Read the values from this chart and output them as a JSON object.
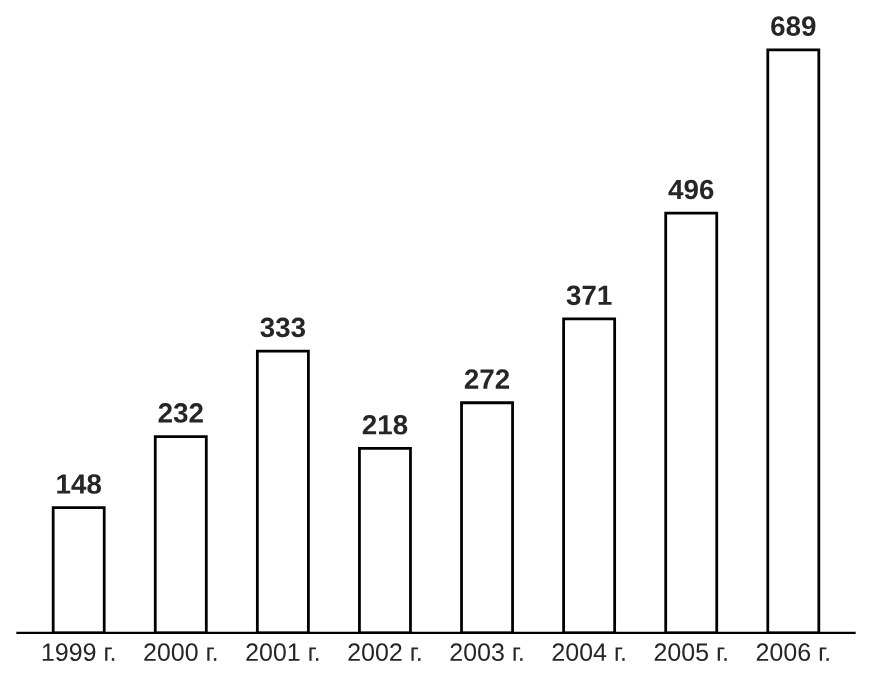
{
  "chart_data": {
    "type": "bar",
    "categories": [
      "1999 г.",
      "2000 г.",
      "2001 г.",
      "2002 г.",
      "2003 г.",
      "2004 г.",
      "2005 г.",
      "2006 г."
    ],
    "values": [
      148,
      232,
      333,
      218,
      272,
      371,
      496,
      689
    ],
    "color": "#ffffff",
    "data_labels": true,
    "grid": false,
    "legend": false
  }
}
